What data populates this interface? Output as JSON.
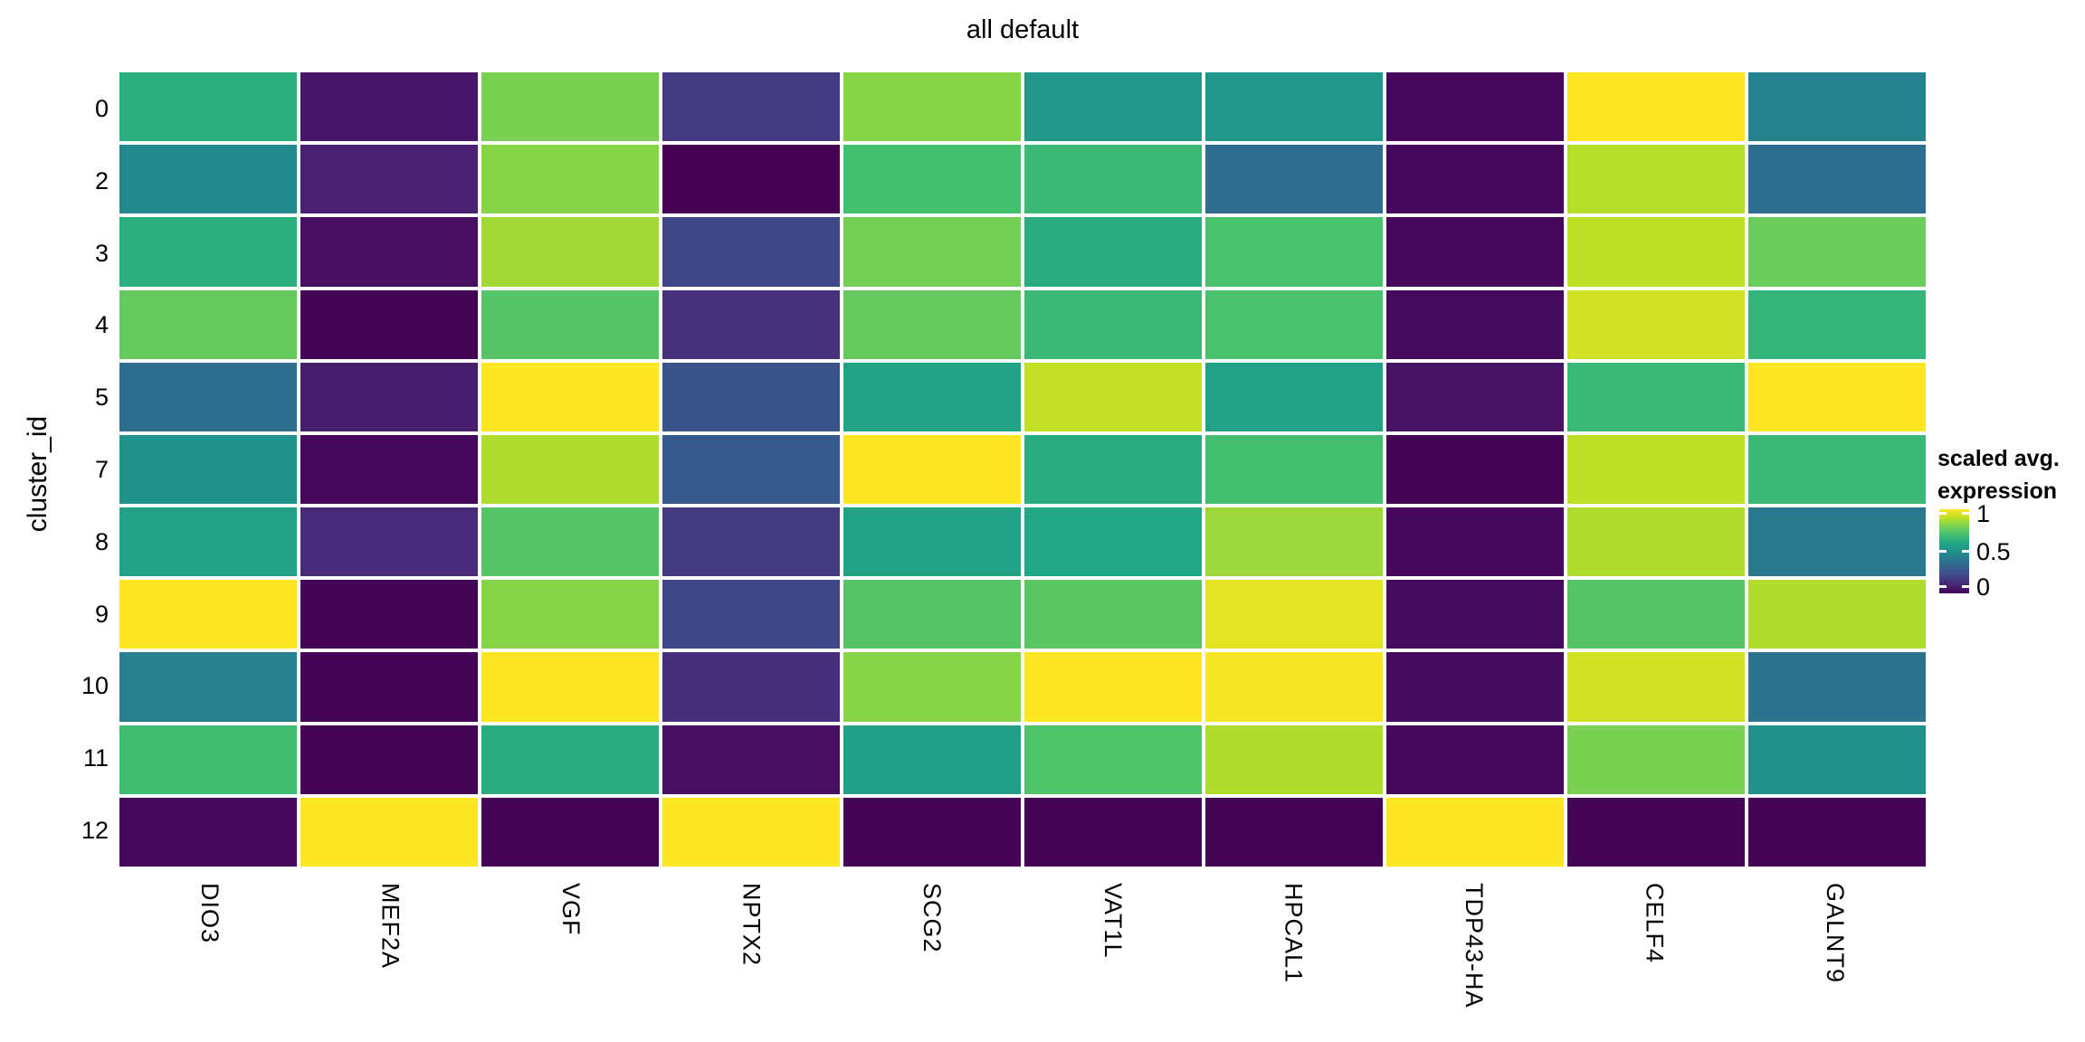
{
  "title": "all default",
  "y_axis": {
    "label": "cluster_id",
    "ticks": [
      "0",
      "2",
      "3",
      "4",
      "5",
      "7",
      "8",
      "9",
      "10",
      "11",
      "12"
    ]
  },
  "x_axis": {
    "ticks": [
      "DIO3",
      "MEF2A",
      "VGF",
      "NPTX2",
      "SCG2",
      "VAT1L",
      "HPCAL1",
      "TDP43-HA",
      "CELF4",
      "GALNT9"
    ]
  },
  "legend": {
    "title_line1": "scaled avg.",
    "title_line2": "expression",
    "tick_labels": [
      "1",
      "0.5",
      "0"
    ],
    "tick_fractions_from_top": [
      0.05,
      0.5,
      0.92
    ]
  },
  "colors": {
    "background": "#ffffff",
    "text": "#000000",
    "cell_gap": "#ffffff",
    "viridis_stops": [
      "#440154",
      "#482475",
      "#414487",
      "#355f8d",
      "#2a788e",
      "#21918c",
      "#22a884",
      "#44bf70",
      "#7ad151",
      "#bddf26",
      "#fde725"
    ]
  },
  "chart_data": {
    "type": "heatmap",
    "title": "all default",
    "ylabel": "cluster_id",
    "xlabel": "",
    "legend_title": "scaled avg. expression",
    "colorscale": "viridis",
    "value_range": [
      0,
      1
    ],
    "legend_ticks": [
      0,
      0.5,
      1
    ],
    "columns": [
      "DIO3",
      "MEF2A",
      "VGF",
      "NPTX2",
      "SCG2",
      "VAT1L",
      "HPCAL1",
      "TDP43-HA",
      "CELF4",
      "GALNT9"
    ],
    "rows": [
      "0",
      "2",
      "3",
      "4",
      "5",
      "7",
      "8",
      "9",
      "10",
      "11",
      "12"
    ],
    "values": [
      [
        0.63,
        0.06,
        0.8,
        0.17,
        0.82,
        0.53,
        0.53,
        0.02,
        1.0,
        0.44
      ],
      [
        0.47,
        0.09,
        0.82,
        0.0,
        0.7,
        0.67,
        0.35,
        0.02,
        0.89,
        0.36
      ],
      [
        0.63,
        0.04,
        0.86,
        0.21,
        0.79,
        0.62,
        0.71,
        0.02,
        0.9,
        0.77
      ],
      [
        0.76,
        0.01,
        0.73,
        0.14,
        0.76,
        0.67,
        0.71,
        0.03,
        0.93,
        0.65
      ],
      [
        0.36,
        0.08,
        1.0,
        0.26,
        0.58,
        0.91,
        0.57,
        0.05,
        0.67,
        1.0
      ],
      [
        0.5,
        0.02,
        0.88,
        0.28,
        1.0,
        0.62,
        0.7,
        0.01,
        0.9,
        0.67
      ],
      [
        0.57,
        0.12,
        0.73,
        0.17,
        0.58,
        0.6,
        0.85,
        0.02,
        0.88,
        0.4
      ],
      [
        1.0,
        0.01,
        0.82,
        0.21,
        0.73,
        0.74,
        0.96,
        0.03,
        0.73,
        0.88
      ],
      [
        0.43,
        0.01,
        1.0,
        0.13,
        0.82,
        1.0,
        0.99,
        0.03,
        0.93,
        0.38
      ],
      [
        0.69,
        0.01,
        0.62,
        0.04,
        0.56,
        0.72,
        0.88,
        0.02,
        0.8,
        0.5
      ],
      [
        0.02,
        1.0,
        0.01,
        1.0,
        0.01,
        0.01,
        0.01,
        1.0,
        0.01,
        0.01
      ]
    ]
  }
}
